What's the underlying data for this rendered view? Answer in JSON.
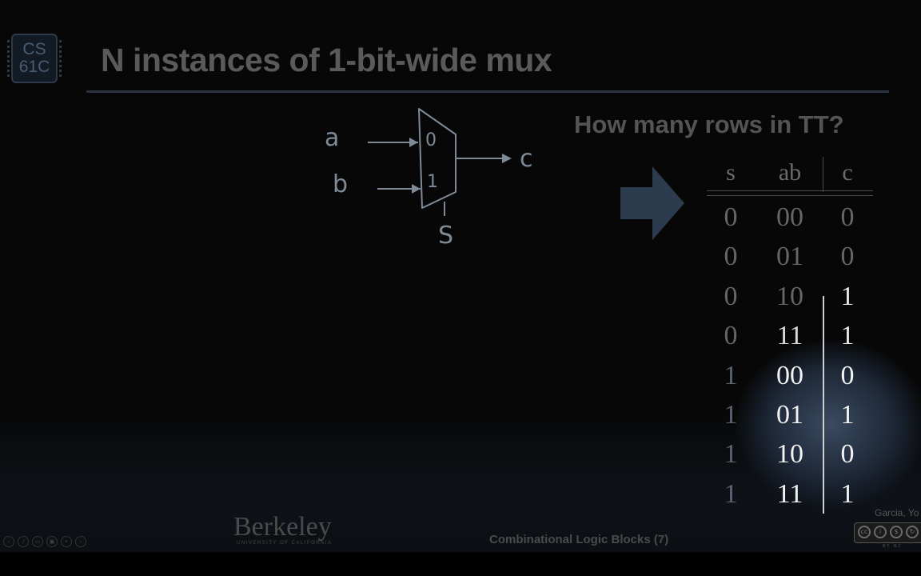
{
  "logo": {
    "line1": "CS",
    "line2": "61C"
  },
  "title": "N instances of 1-bit-wide mux",
  "question": "How many rows in TT?",
  "mux_diagram": {
    "input_a": "a",
    "input_b": "b",
    "select": "S",
    "output": "c",
    "port0": "0",
    "port1": "1"
  },
  "truth_table": {
    "headers": [
      "s",
      "ab",
      "c"
    ],
    "rows": [
      [
        "0",
        "00",
        "0"
      ],
      [
        "0",
        "01",
        "0"
      ],
      [
        "0",
        "10",
        "1"
      ],
      [
        "0",
        "11",
        "1"
      ],
      [
        "1",
        "00",
        "0"
      ],
      [
        "1",
        "01",
        "1"
      ],
      [
        "1",
        "10",
        "0"
      ],
      [
        "1",
        "11",
        "1"
      ]
    ]
  },
  "footer": {
    "institution": "Berkeley",
    "institution_sub": "UNIVERSITY OF CALIFORNIA",
    "lecture": "Combinational Logic Blocks (7)",
    "author": "Garcia, Yo",
    "license_labels": "BY NC"
  },
  "colors": {
    "background": "#070707",
    "accent_rule": "#2a3340",
    "arrow": "#2c3b4d",
    "glow": "#3a4a60"
  },
  "icons": [
    "arrow-right-icon",
    "creative-commons-icon",
    "slide-nav-icons"
  ]
}
